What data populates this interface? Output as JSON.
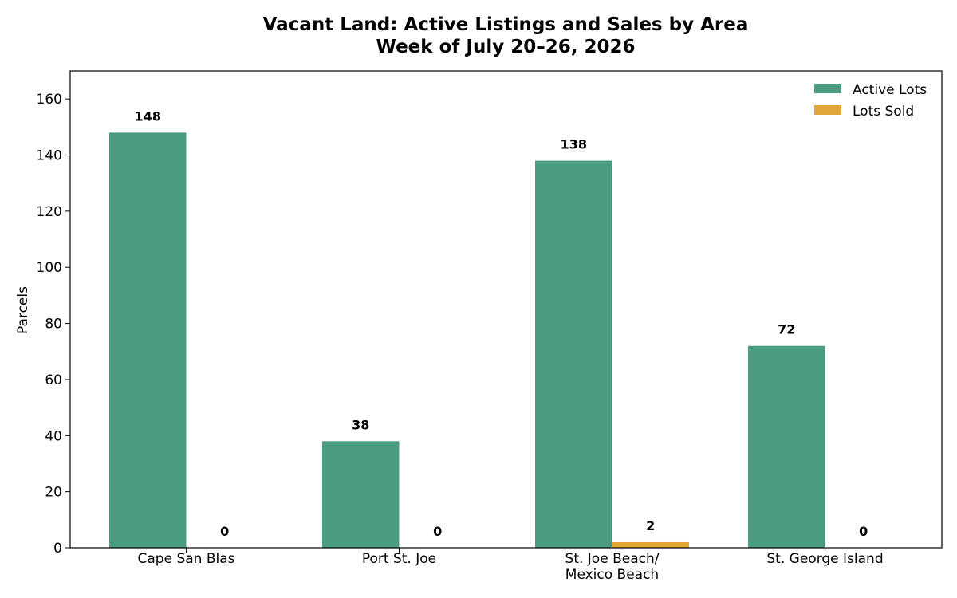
{
  "chart_data": {
    "type": "bar",
    "title": "Vacant Land: Active Listings and Sales by Area",
    "subtitle": "Week of July 20–26, 2026",
    "xlabel": "",
    "ylabel": "Parcels",
    "ylim": [
      0,
      170
    ],
    "yticks": [
      0,
      20,
      40,
      60,
      80,
      100,
      120,
      140,
      160
    ],
    "categories": [
      "Cape San Blas",
      "Port St. Joe",
      "St. Joe Beach/\nMexico Beach",
      "St. George Island"
    ],
    "series": [
      {
        "name": "Active Lots",
        "values": [
          148,
          38,
          138,
          72
        ],
        "color": "#4a9c80"
      },
      {
        "name": "Lots Sold",
        "values": [
          0,
          0,
          2,
          0
        ],
        "color": "#e2a53a"
      }
    ],
    "grid": false,
    "legend_position": "top-right",
    "data_labels": true
  }
}
